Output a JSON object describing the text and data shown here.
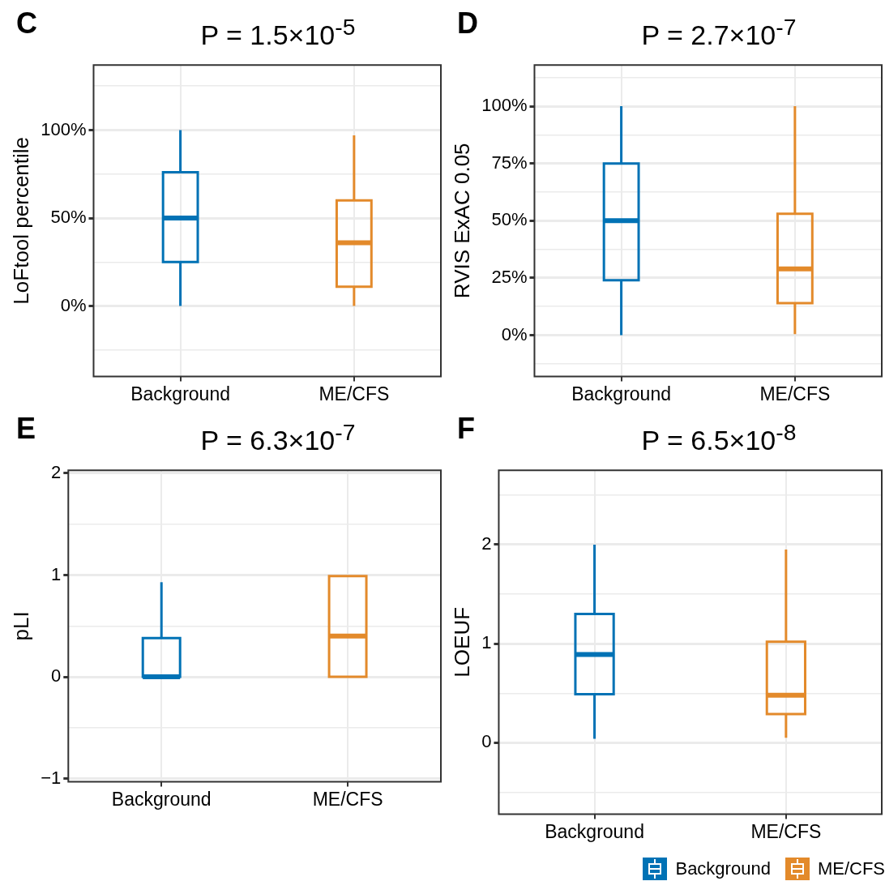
{
  "chart_data": [
    {
      "type": "box",
      "title": "P = 1.5×10$^{-5}$",
      "annotations": [
        "C"
      ],
      "ylabel": "LoFtool percentile",
      "categories": [
        "Background",
        "ME/CFS"
      ],
      "colors": [
        "#0072b5",
        "#e38a2b"
      ],
      "boxes": [
        {
          "low": 0,
          "q1": 25,
          "median": 50,
          "q3": 76,
          "high": 100
        },
        {
          "low": 0,
          "q1": 11,
          "median": 36,
          "q3": 60,
          "high": 97
        }
      ],
      "ylim": [
        -40,
        137
      ],
      "yticks": [
        {
          "value": -25,
          "label": null
        },
        {
          "value": 0,
          "label": "0%"
        },
        {
          "value": 25,
          "label": null
        },
        {
          "value": 50,
          "label": "50%"
        },
        {
          "value": 75,
          "label": null
        },
        {
          "value": 100,
          "label": "100%"
        },
        {
          "value": 125,
          "label": null
        }
      ],
      "grid": true
    },
    {
      "type": "box",
      "title": "P = 2.7×10$^{-7}$",
      "annotations": [
        "D"
      ],
      "ylabel": "RVIS ExAC 0.05",
      "categories": [
        "Background",
        "ME/CFS"
      ],
      "colors": [
        "#0072b5",
        "#e38a2b"
      ],
      "boxes": [
        {
          "low": 0,
          "q1": 24,
          "median": 50,
          "q3": 75,
          "high": 100
        },
        {
          "low": 0.5,
          "q1": 14,
          "median": 29,
          "q3": 53,
          "high": 100
        }
      ],
      "ylim": [
        -18,
        118
      ],
      "yticks": [
        {
          "value": -12.5,
          "label": null
        },
        {
          "value": 0,
          "label": "0%"
        },
        {
          "value": 12.5,
          "label": null
        },
        {
          "value": 25,
          "label": "25%"
        },
        {
          "value": 37.5,
          "label": null
        },
        {
          "value": 50,
          "label": "50%"
        },
        {
          "value": 62.5,
          "label": null
        },
        {
          "value": 75,
          "label": "75%"
        },
        {
          "value": 87.5,
          "label": null
        },
        {
          "value": 100,
          "label": "100%"
        },
        {
          "value": 112.5,
          "label": null
        }
      ],
      "grid": true
    },
    {
      "type": "box",
      "title": "P = 6.3×10$^{-7}$",
      "annotations": [
        "E"
      ],
      "ylabel": "pLI",
      "categories": [
        "Background",
        "ME/CFS"
      ],
      "colors": [
        "#0072b5",
        "#e38a2b"
      ],
      "boxes": [
        {
          "low": 0,
          "q1": 0,
          "median": 0,
          "q3": 0.38,
          "high": 0.93
        },
        {
          "low": 0,
          "q1": 0,
          "median": 0.4,
          "q3": 0.99,
          "high": 0.99
        }
      ],
      "ylim": [
        -1.03,
        2.03
      ],
      "yticks": [
        {
          "value": -1,
          "label": "−1"
        },
        {
          "value": -0.5,
          "label": null
        },
        0,
        {
          "value": 0.5,
          "label": null
        },
        1,
        {
          "value": 1.5,
          "label": null
        },
        2
      ],
      "grid": true
    },
    {
      "type": "box",
      "title": "P = 6.5×10$^{-8}$",
      "annotations": [
        "F"
      ],
      "ylabel": "LOEUF",
      "categories": [
        "Background",
        "ME/CFS"
      ],
      "series": [
        {
          "name": "Background",
          "color": "#0072b5",
          "boxes": [
            {
              "low": 0.04,
              "q1": 0.49,
              "median": 0.89,
              "q3": 1.3,
              "high": 2.0
            },
            null
          ]
        },
        {
          "name": "ME/CFS",
          "color": "#e38a2b",
          "boxes": [
            null,
            {
              "low": 0.05,
              "q1": 0.29,
              "median": 0.48,
              "q3": 1.02,
              "high": 1.95
            }
          ]
        }
      ],
      "ylim": [
        -0.72,
        2.75
      ],
      "yticks": [
        {
          "value": -0.5,
          "label": null
        },
        0,
        {
          "value": 0.5,
          "label": null
        },
        1,
        {
          "value": 1.5,
          "label": null
        },
        2,
        {
          "value": 2.5,
          "label": null
        }
      ],
      "grid": true,
      "legend": "bottom"
    }
  ]
}
